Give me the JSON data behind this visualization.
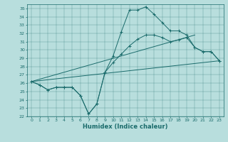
{
  "xlabel": "Humidex (Indice chaleur)",
  "xlim": [
    -0.5,
    23.5
  ],
  "ylim": [
    22,
    35.5
  ],
  "yticks": [
    22,
    23,
    24,
    25,
    26,
    27,
    28,
    29,
    30,
    31,
    32,
    33,
    34,
    35
  ],
  "xticks": [
    0,
    1,
    2,
    3,
    4,
    5,
    6,
    7,
    8,
    9,
    10,
    11,
    12,
    13,
    14,
    15,
    16,
    17,
    18,
    19,
    20,
    21,
    22,
    23
  ],
  "bg_color": "#b8dedd",
  "line_color": "#1a6b6b",
  "lines": [
    {
      "x": [
        0,
        1,
        2,
        3,
        4,
        5,
        6,
        7,
        8,
        9,
        10,
        11,
        12,
        13,
        14,
        15,
        16,
        17,
        18,
        19,
        20,
        21,
        22,
        23
      ],
      "y": [
        26.2,
        25.8,
        25.2,
        25.5,
        25.5,
        25.5,
        24.5,
        22.3,
        23.5,
        27.3,
        29.3,
        32.2,
        34.8,
        34.8,
        35.2,
        34.3,
        33.3,
        32.3,
        32.3,
        31.8,
        30.3,
        29.8,
        29.8,
        28.7
      ],
      "marker": true
    },
    {
      "x": [
        0,
        1,
        2,
        3,
        4,
        5,
        6,
        7,
        8,
        9,
        10,
        11,
        12,
        13,
        14,
        15,
        16,
        17,
        18,
        19,
        20,
        21,
        22,
        23
      ],
      "y": [
        26.2,
        25.8,
        25.2,
        25.5,
        25.5,
        25.5,
        24.5,
        22.3,
        23.5,
        27.3,
        28.5,
        29.5,
        30.5,
        31.3,
        31.8,
        31.8,
        31.5,
        31.0,
        31.2,
        31.5,
        30.3,
        29.8,
        29.8,
        28.7
      ],
      "marker": true
    },
    {
      "x": [
        0,
        20
      ],
      "y": [
        26.2,
        31.8
      ],
      "marker": false
    },
    {
      "x": [
        0,
        23
      ],
      "y": [
        26.2,
        28.7
      ],
      "marker": false
    }
  ]
}
